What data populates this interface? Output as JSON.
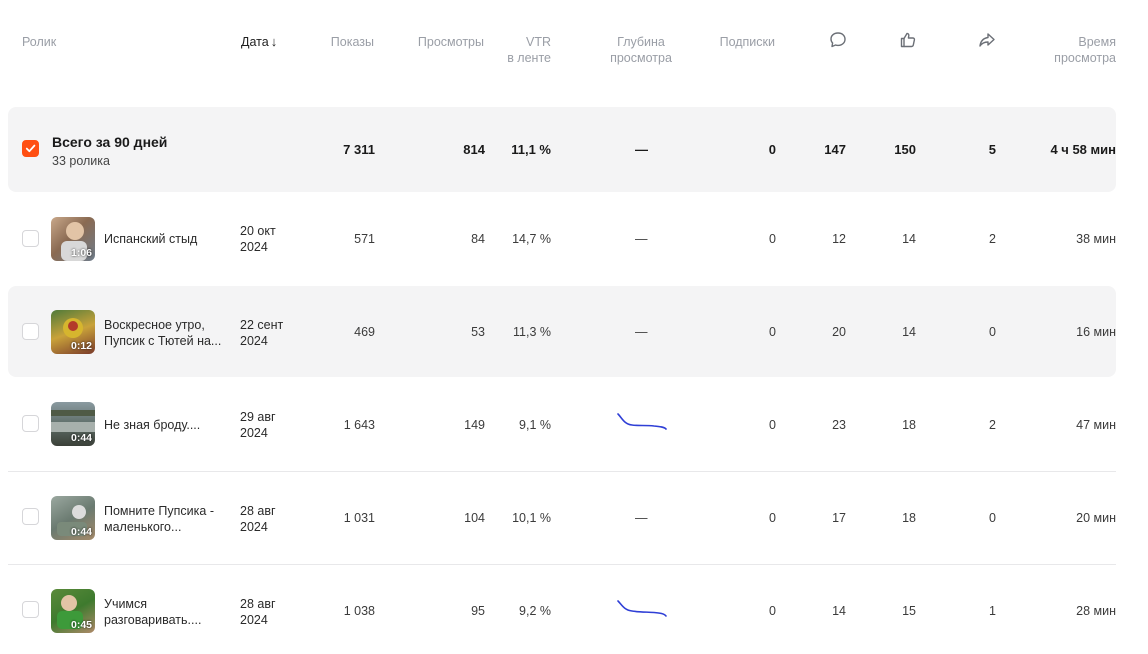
{
  "header": {
    "video": "Ролик",
    "date": "Дата",
    "sort_arrow": "↓",
    "impressions": "Показы",
    "views": "Просмотры",
    "vtr_line1": "VTR",
    "vtr_line2": "в ленте",
    "depth_line1": "Глубина",
    "depth_line2": "просмотра",
    "subscriptions": "Подписки",
    "comments_icon": "comment-icon",
    "likes_icon": "thumbs-up-icon",
    "shares_icon": "share-icon",
    "watch_time_line1": "Время",
    "watch_time_line2": "просмотра"
  },
  "total": {
    "title": "Всего за 90 дней",
    "subtitle": "33 ролика",
    "checked": true,
    "impressions": "7 311",
    "views": "814",
    "vtr": "11,1 %",
    "depth": "—",
    "subscriptions": "0",
    "comments": "147",
    "likes": "150",
    "shares": "5",
    "watch_time": "4 ч 58 мин"
  },
  "rows": [
    {
      "title": "Испанский стыд",
      "duration": "1:06",
      "date_line1": "20 окт",
      "date_line2": "2024",
      "impressions": "571",
      "views": "84",
      "vtr": "14,7 %",
      "depth": "—",
      "has_sparkline": false,
      "subscriptions": "0",
      "comments": "12",
      "likes": "14",
      "shares": "2",
      "watch_time": "38 мин"
    },
    {
      "title": "Воскресное утро, Пупсик с Тютей на...",
      "duration": "0:12",
      "date_line1": "22 сент",
      "date_line2": "2024",
      "impressions": "469",
      "views": "53",
      "vtr": "11,3 %",
      "depth": "—",
      "has_sparkline": false,
      "subscriptions": "0",
      "comments": "20",
      "likes": "14",
      "shares": "0",
      "watch_time": "16 мин"
    },
    {
      "title": "Не зная броду....",
      "duration": "0:44",
      "date_line1": "29 авг",
      "date_line2": "2024",
      "impressions": "1 643",
      "views": "149",
      "vtr": "9,1 %",
      "depth": "",
      "has_sparkline": true,
      "subscriptions": "0",
      "comments": "23",
      "likes": "18",
      "shares": "2",
      "watch_time": "47 мин"
    },
    {
      "title": "Помните Пупсика - маленького...",
      "duration": "0:44",
      "date_line1": "28 авг",
      "date_line2": "2024",
      "impressions": "1 031",
      "views": "104",
      "vtr": "10,1 %",
      "depth": "—",
      "has_sparkline": false,
      "subscriptions": "0",
      "comments": "17",
      "likes": "18",
      "shares": "0",
      "watch_time": "20 мин"
    },
    {
      "title": "Учимся разговаривать....",
      "duration": "0:45",
      "date_line1": "28 авг",
      "date_line2": "2024",
      "impressions": "1 038",
      "views": "95",
      "vtr": "9,2 %",
      "depth": "",
      "has_sparkline": true,
      "subscriptions": "0",
      "comments": "14",
      "likes": "15",
      "shares": "1",
      "watch_time": "28 мин"
    }
  ],
  "colors": {
    "accent": "#ff4f12",
    "sparkline": "#2f3fd6",
    "row_shade": "#f4f4f5",
    "header_text": "#9a9ea6"
  }
}
